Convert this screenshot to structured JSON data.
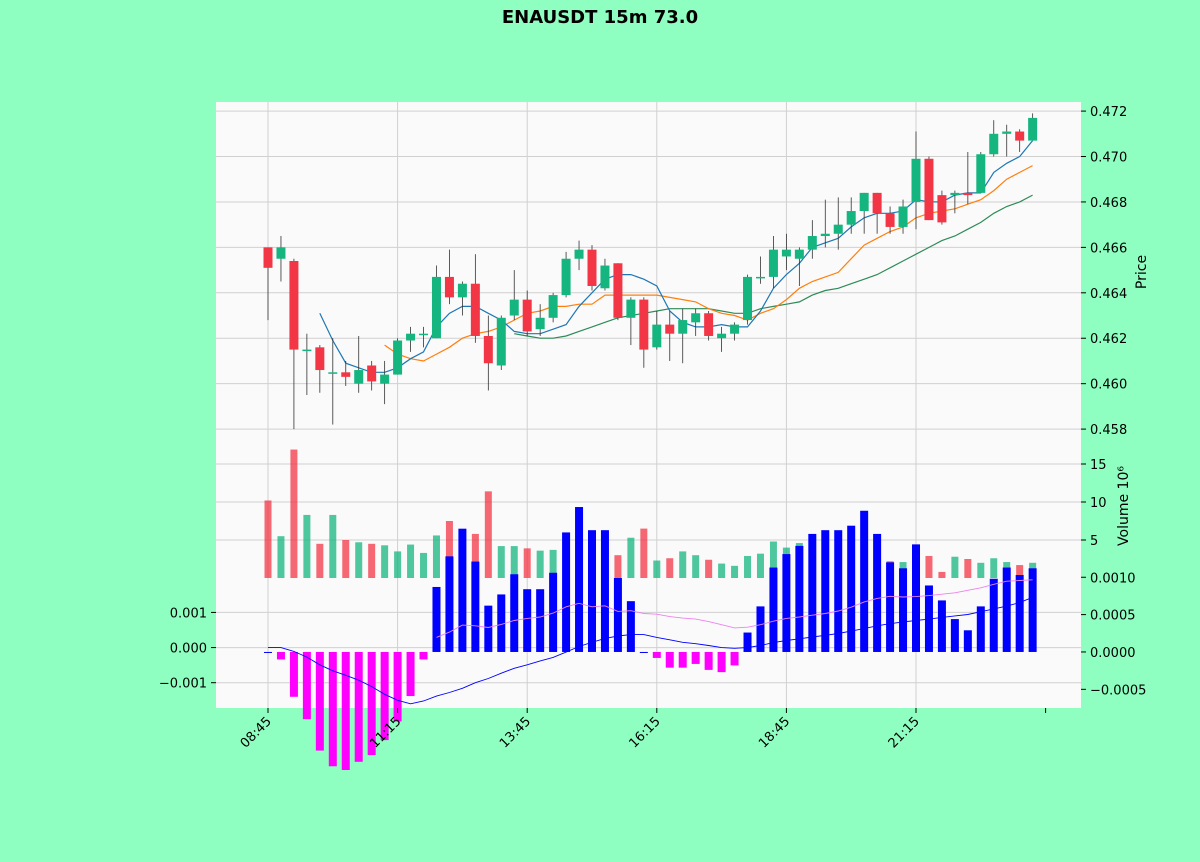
{
  "chart_data": {
    "title": "ENAUSDT 15m 73.0",
    "type": "candlestick",
    "x_ticks": [
      "08:45",
      "11:15",
      "13:45",
      "16:15",
      "18:45",
      "21:15"
    ],
    "price": {
      "ylabel": "Price",
      "ylim": [
        0.4573,
        0.4724
      ],
      "ticks": [
        "0.458",
        "0.460",
        "0.462",
        "0.464",
        "0.466",
        "0.468",
        "0.470",
        "0.472"
      ],
      "tick_values": [
        0.458,
        0.46,
        0.462,
        0.464,
        0.466,
        0.468,
        0.47,
        0.472
      ]
    },
    "volume": {
      "ylabel": "Volume  10⁶",
      "ylim": [
        0,
        17.5
      ],
      "ticks": [
        "5",
        "10",
        "15"
      ],
      "tick_values": [
        5,
        10,
        15
      ]
    },
    "macd": {
      "left_ylim": [
        -0.00172,
        0.00198
      ],
      "left_ticks": [
        "−0.001",
        "0.000",
        "0.001"
      ],
      "left_tick_values": [
        -0.001,
        0.0,
        0.001
      ],
      "right_ylim": [
        -0.00075,
        0.00099
      ],
      "right_ticks": [
        "−0.0005",
        "0.0000",
        "0.0005",
        "0.0010"
      ],
      "right_tick_values": [
        -0.0005,
        0.0,
        0.0005,
        0.001
      ]
    },
    "colors": {
      "up": "#15b57f",
      "down": "#f23645",
      "hist_pos": "#0000ff",
      "hist_neg": "#ff00ff",
      "ma_blue": "#1f77b4",
      "ma_orange": "#ff7f0e",
      "ma_green": "#2e8b57",
      "macd_line": "#0000ff",
      "signal_line": "#ee82ee"
    },
    "candles": [
      [
        0.466,
        0.466,
        0.4628,
        0.4651
      ],
      [
        0.4655,
        0.4665,
        0.4645,
        0.466
      ],
      [
        0.4654,
        0.4655,
        0.458,
        0.4615
      ],
      [
        0.4615,
        0.4622,
        0.4595,
        0.4615
      ],
      [
        0.4616,
        0.4617,
        0.4596,
        0.4606
      ],
      [
        0.4605,
        0.462,
        0.4582,
        0.4605
      ],
      [
        0.4605,
        0.461,
        0.4599,
        0.4603
      ],
      [
        0.46,
        0.4621,
        0.4596,
        0.4606
      ],
      [
        0.4608,
        0.461,
        0.4597,
        0.4601
      ],
      [
        0.46,
        0.461,
        0.4591,
        0.4604
      ],
      [
        0.4604,
        0.462,
        0.4604,
        0.4619
      ],
      [
        0.4619,
        0.4625,
        0.4614,
        0.4622
      ],
      [
        0.4622,
        0.4625,
        0.4616,
        0.4622
      ],
      [
        0.462,
        0.4652,
        0.462,
        0.4647
      ],
      [
        0.4647,
        0.4659,
        0.4635,
        0.4638
      ],
      [
        0.4638,
        0.4645,
        0.463,
        0.4644
      ],
      [
        0.4644,
        0.4657,
        0.4618,
        0.4621
      ],
      [
        0.4621,
        0.463,
        0.4597,
        0.4609
      ],
      [
        0.4608,
        0.463,
        0.4606,
        0.4629
      ],
      [
        0.463,
        0.465,
        0.4628,
        0.4637
      ],
      [
        0.4637,
        0.4641,
        0.4621,
        0.4623
      ],
      [
        0.4624,
        0.4635,
        0.4621,
        0.4629
      ],
      [
        0.4629,
        0.464,
        0.4627,
        0.4639
      ],
      [
        0.4639,
        0.4658,
        0.4638,
        0.4655
      ],
      [
        0.4655,
        0.4663,
        0.465,
        0.4659
      ],
      [
        0.4659,
        0.4661,
        0.4641,
        0.4643
      ],
      [
        0.4642,
        0.4655,
        0.4641,
        0.4652
      ],
      [
        0.4653,
        0.4653,
        0.4628,
        0.4629
      ],
      [
        0.4629,
        0.4638,
        0.4617,
        0.4637
      ],
      [
        0.4637,
        0.4638,
        0.4607,
        0.4615
      ],
      [
        0.4616,
        0.4632,
        0.4615,
        0.4626
      ],
      [
        0.4626,
        0.4632,
        0.461,
        0.4622
      ],
      [
        0.4622,
        0.4633,
        0.4609,
        0.4628
      ],
      [
        0.4627,
        0.4633,
        0.4621,
        0.4631
      ],
      [
        0.4631,
        0.4632,
        0.4619,
        0.4621
      ],
      [
        0.462,
        0.4625,
        0.4614,
        0.4622
      ],
      [
        0.4622,
        0.4627,
        0.4619,
        0.4626
      ],
      [
        0.4628,
        0.4648,
        0.4626,
        0.4647
      ],
      [
        0.4647,
        0.4656,
        0.4644,
        0.4647
      ],
      [
        0.4647,
        0.4665,
        0.4642,
        0.4659
      ],
      [
        0.4656,
        0.4666,
        0.465,
        0.4659
      ],
      [
        0.4655,
        0.466,
        0.4643,
        0.4659
      ],
      [
        0.4659,
        0.4672,
        0.4655,
        0.4665
      ],
      [
        0.4665,
        0.4681,
        0.466,
        0.4666
      ],
      [
        0.4666,
        0.4682,
        0.4659,
        0.467
      ],
      [
        0.467,
        0.4682,
        0.4666,
        0.4676
      ],
      [
        0.4676,
        0.4684,
        0.4666,
        0.4684
      ],
      [
        0.4684,
        0.4684,
        0.4666,
        0.4675
      ],
      [
        0.4675,
        0.4678,
        0.4666,
        0.4669
      ],
      [
        0.4669,
        0.4681,
        0.4666,
        0.4678
      ],
      [
        0.468,
        0.4711,
        0.4668,
        0.4699
      ],
      [
        0.4699,
        0.47,
        0.4672,
        0.4672
      ],
      [
        0.4683,
        0.4685,
        0.467,
        0.4671
      ],
      [
        0.4683,
        0.4685,
        0.4675,
        0.4684
      ],
      [
        0.4684,
        0.4702,
        0.4679,
        0.4683
      ],
      [
        0.4684,
        0.4702,
        0.4684,
        0.4701
      ],
      [
        0.4701,
        0.4716,
        0.47,
        0.471
      ],
      [
        0.471,
        0.4714,
        0.47,
        0.4711
      ],
      [
        0.4711,
        0.4712,
        0.4702,
        0.4707
      ],
      [
        0.4707,
        0.4719,
        0.4707,
        0.4717
      ]
    ],
    "ma_blue": [
      null,
      null,
      null,
      null,
      0.4631,
      0.4619,
      0.4609,
      0.4607,
      0.4605,
      0.4605,
      0.4607,
      0.4611,
      0.4614,
      0.4625,
      0.4631,
      0.4634,
      0.4634,
      0.4631,
      0.4628,
      0.4623,
      0.4622,
      0.4622,
      0.4624,
      0.4626,
      0.4634,
      0.464,
      0.4646,
      0.4648,
      0.4648,
      0.4646,
      0.4643,
      0.4632,
      0.4627,
      0.4625,
      0.4625,
      0.4626,
      0.4625,
      0.4625,
      0.4632,
      0.4642,
      0.4648,
      0.4653,
      0.466,
      0.4662,
      0.4664,
      0.4669,
      0.4673,
      0.4675,
      0.4675,
      0.4676,
      0.4681,
      0.468,
      0.468,
      0.4683,
      0.4684,
      0.4684,
      0.4693,
      0.4697,
      0.47,
      0.4707
    ],
    "ma_orange": [
      null,
      null,
      null,
      null,
      null,
      null,
      null,
      null,
      null,
      0.4617,
      0.4613,
      0.4611,
      0.461,
      0.4613,
      0.4616,
      0.462,
      0.4622,
      0.4623,
      0.4625,
      0.4628,
      0.4631,
      0.4632,
      0.4634,
      0.4634,
      0.4635,
      0.4635,
      0.4639,
      0.4639,
      0.4639,
      0.4639,
      0.4639,
      0.4638,
      0.4637,
      0.4636,
      0.4633,
      0.4631,
      0.463,
      0.4628,
      0.4631,
      0.4633,
      0.4637,
      0.4642,
      0.4645,
      0.4647,
      0.4649,
      0.4655,
      0.4661,
      0.4664,
      0.4667,
      0.4669,
      0.4673,
      0.4675,
      0.4676,
      0.4677,
      0.4679,
      0.4681,
      0.4685,
      0.469,
      0.4693,
      0.4696
    ],
    "ma_green": [
      null,
      null,
      null,
      null,
      null,
      null,
      null,
      null,
      null,
      null,
      null,
      null,
      null,
      null,
      null,
      null,
      null,
      null,
      null,
      0.4622,
      0.4621,
      0.462,
      0.462,
      0.4621,
      0.4623,
      0.4625,
      0.4627,
      0.4629,
      0.463,
      0.4631,
      0.4632,
      0.4633,
      0.4633,
      0.4633,
      0.4633,
      0.4632,
      0.4631,
      0.4631,
      0.4633,
      0.4634,
      0.4635,
      0.4636,
      0.4639,
      0.4641,
      0.4642,
      0.4644,
      0.4646,
      0.4648,
      0.4651,
      0.4654,
      0.4657,
      0.466,
      0.4663,
      0.4665,
      0.4668,
      0.4671,
      0.4675,
      0.4678,
      0.468,
      0.4683
    ],
    "volumes": [
      10.2,
      5.5,
      16.9,
      8.3,
      4.5,
      8.3,
      5.0,
      4.7,
      4.5,
      4.3,
      3.5,
      4.4,
      3.3,
      5.6,
      7.5,
      2.8,
      5.8,
      11.4,
      4.2,
      4.2,
      3.9,
      3.6,
      3.7,
      3.6,
      3.7,
      4.2,
      3.8,
      3.0,
      5.3,
      6.5,
      2.3,
      2.6,
      3.5,
      3.0,
      2.4,
      1.9,
      1.6,
      2.9,
      3.2,
      4.8,
      4.0,
      4.6,
      2.3,
      3.9,
      3.7,
      2.3,
      2.9,
      3.3,
      2.2,
      2.1,
      4.1,
      2.9,
      0.8,
      2.8,
      2.5,
      2.0,
      2.6,
      2.1,
      1.7,
      2.0
    ],
    "macd_hist": [
      0.0,
      -0.0001,
      -0.0006,
      -0.0009,
      -0.00132,
      -0.00153,
      -0.00158,
      -0.00147,
      -0.00138,
      -0.00118,
      -0.00093,
      -0.00059,
      -0.0001,
      0.00087,
      0.00128,
      0.00165,
      0.00121,
      0.00062,
      0.00077,
      0.00104,
      0.00084,
      0.00084,
      0.00106,
      0.0016,
      0.00194,
      0.00163,
      0.00163,
      0.00099,
      0.00068,
      0.0,
      -8e-05,
      -0.00021,
      -0.00021,
      -0.00016,
      -0.00024,
      -0.00027,
      -0.00018,
      0.00026,
      0.00061,
      0.00113,
      0.00131,
      0.00142,
      0.00158,
      0.00163,
      0.00163,
      0.00169,
      0.00189,
      0.00158,
      0.0012,
      0.00112,
      0.00144,
      0.00089,
      0.00069,
      0.00044,
      0.00029,
      0.00061,
      0.00098,
      0.00113,
      0.00103,
      0.00112
    ],
    "macd_line": [
      0.0,
      0.0,
      -0.00011,
      -0.00027,
      -0.00049,
      -0.00066,
      -0.00079,
      -0.00093,
      -0.00111,
      -0.00133,
      -0.0015,
      -0.0016,
      -0.00152,
      -0.00138,
      -0.00128,
      -0.00116,
      -0.001,
      -0.00088,
      -0.00073,
      -0.00059,
      -0.00049,
      -0.00038,
      -0.00028,
      -0.00013,
      3e-05,
      0.00015,
      0.00026,
      0.00033,
      0.00037,
      0.00037,
      0.00029,
      0.00022,
      0.00015,
      0.00011,
      6e-05,
      0.0,
      -2e-05,
      0.0,
      6e-05,
      0.00014,
      0.0002,
      0.00025,
      0.0003,
      0.00035,
      0.0004,
      0.00047,
      0.00054,
      0.00062,
      0.00068,
      0.00073,
      0.00077,
      0.00081,
      0.00086,
      0.0009,
      0.00094,
      0.00102,
      0.0011,
      0.00118,
      0.00128,
      0.00143
    ],
    "signal_line": [
      null,
      null,
      null,
      null,
      null,
      null,
      null,
      null,
      null,
      null,
      null,
      null,
      null,
      0.00029,
      0.00044,
      0.00064,
      0.00062,
      0.00057,
      0.00066,
      0.00077,
      0.00083,
      0.00087,
      0.00098,
      0.00116,
      0.00126,
      0.00116,
      0.00119,
      0.00103,
      0.00105,
      0.00097,
      0.00095,
      0.00088,
      0.00084,
      0.00081,
      0.00074,
      0.00065,
      0.00056,
      0.00058,
      0.00065,
      0.00075,
      0.00083,
      0.00087,
      0.00092,
      0.00097,
      0.00104,
      0.00115,
      0.0013,
      0.0014,
      0.00146,
      0.00144,
      0.00145,
      0.00148,
      0.00152,
      0.00156,
      0.00163,
      0.0017,
      0.0018,
      0.00189,
      0.00191,
      0.00193
    ]
  }
}
